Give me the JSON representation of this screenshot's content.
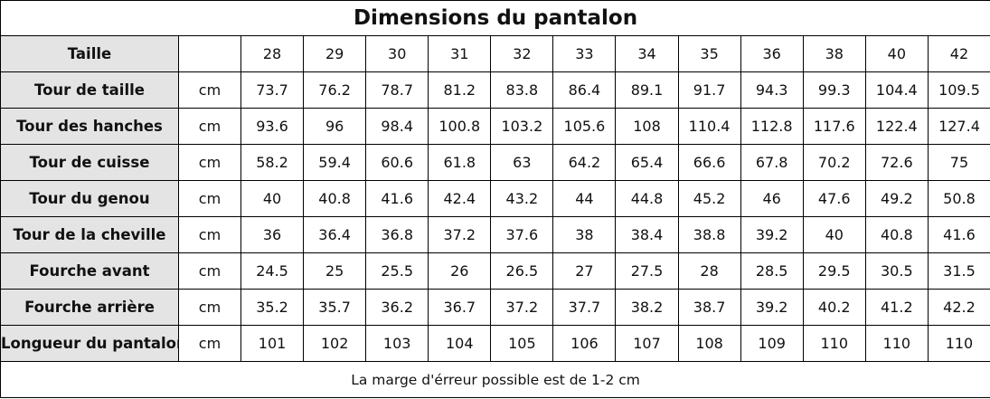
{
  "title": "Dimensions du pantalon",
  "header": {
    "label": "Taille",
    "sizes": [
      28,
      29,
      30,
      31,
      32,
      33,
      34,
      35,
      36,
      38,
      40,
      42
    ]
  },
  "rows": [
    {
      "label": "Tour de taille",
      "unit": "cm",
      "values": [
        73.7,
        76.2,
        78.7,
        81.2,
        83.8,
        86.4,
        89.1,
        91.7,
        94.3,
        99.3,
        104.4,
        109.5
      ]
    },
    {
      "label": "Tour des hanches",
      "unit": "cm",
      "values": [
        93.6,
        96,
        98.4,
        100.8,
        103.2,
        105.6,
        108,
        110.4,
        112.8,
        117.6,
        122.4,
        127.4
      ]
    },
    {
      "label": "Tour de cuisse",
      "unit": "cm",
      "values": [
        58.2,
        59.4,
        60.6,
        61.8,
        63,
        64.2,
        65.4,
        66.6,
        67.8,
        70.2,
        72.6,
        75
      ]
    },
    {
      "label": "Tour du genou",
      "unit": "cm",
      "values": [
        40,
        40.8,
        41.6,
        42.4,
        43.2,
        44,
        44.8,
        45.2,
        46,
        47.6,
        49.2,
        50.8
      ]
    },
    {
      "label": "Tour de la cheville",
      "unit": "cm",
      "values": [
        36,
        36.4,
        36.8,
        37.2,
        37.6,
        38,
        38.4,
        38.8,
        39.2,
        40,
        40.8,
        41.6
      ]
    },
    {
      "label": "Fourche avant",
      "unit": "cm",
      "values": [
        24.5,
        25,
        25.5,
        26,
        26.5,
        27,
        27.5,
        28,
        28.5,
        29.5,
        30.5,
        31.5
      ]
    },
    {
      "label": "Fourche arrière",
      "unit": "cm",
      "values": [
        35.2,
        35.7,
        36.2,
        36.7,
        37.2,
        37.7,
        38.2,
        38.7,
        39.2,
        40.2,
        41.2,
        42.2
      ]
    },
    {
      "label": "Longueur du pantalon",
      "unit": "cm",
      "values": [
        101,
        102,
        103,
        104,
        105,
        106,
        107,
        108,
        109,
        110,
        110,
        110
      ]
    }
  ],
  "note": "La marge d'érreur possible est de 1-2 cm"
}
